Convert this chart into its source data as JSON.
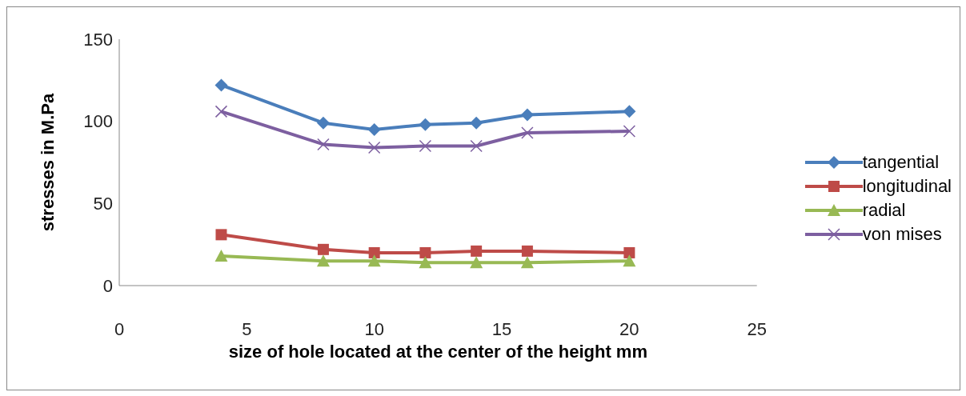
{
  "chart_data": {
    "type": "line",
    "xlabel": "size of hole located at the center of the height   mm",
    "ylabel": "stresses in M.Pa",
    "x": [
      4,
      8,
      10,
      12,
      14,
      16,
      20
    ],
    "series": [
      {
        "name": "tangential",
        "color": "#4a7ebb",
        "marker": "diamond",
        "values": [
          122,
          99,
          95,
          98,
          99,
          104,
          106
        ]
      },
      {
        "name": "longitudinal",
        "color": "#be4b48",
        "marker": "square",
        "values": [
          31,
          22,
          20,
          20,
          21,
          21,
          20
        ]
      },
      {
        "name": "radial",
        "color": "#98b954",
        "marker": "triangle",
        "values": [
          18,
          15,
          15,
          14,
          14,
          14,
          15
        ]
      },
      {
        "name": "von mises",
        "color": "#7d5fa0",
        "marker": "cross",
        "values": [
          106,
          86,
          84,
          85,
          85,
          93,
          94
        ]
      }
    ],
    "xlim": [
      0,
      25
    ],
    "xticks": [
      0,
      5,
      10,
      15,
      20,
      25
    ],
    "ylim": [
      0,
      150
    ],
    "yticks": [
      0,
      50,
      100,
      150
    ],
    "grid": false,
    "legend": "right",
    "line_style": "solid"
  }
}
